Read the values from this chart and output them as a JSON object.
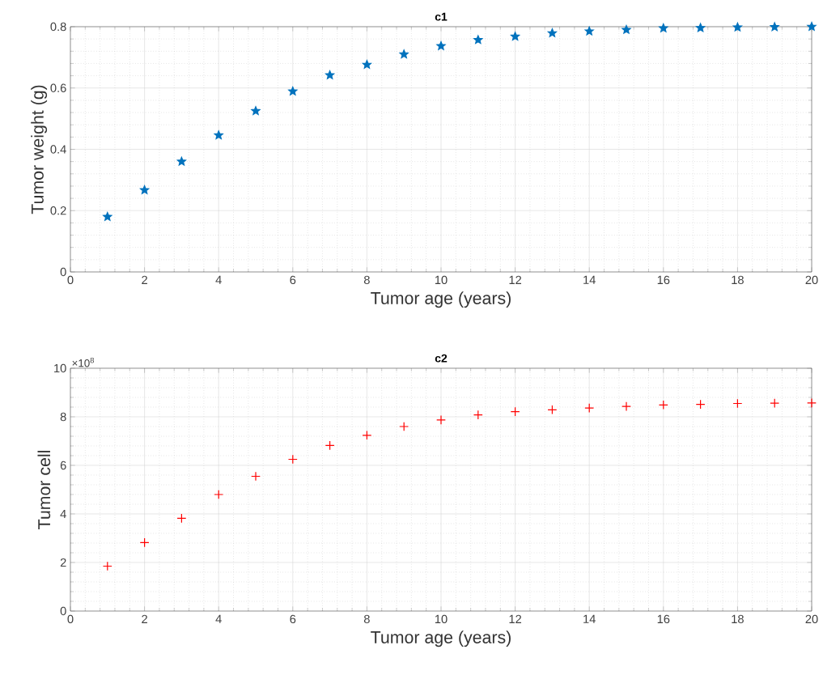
{
  "chart_data": [
    {
      "type": "scatter",
      "title": "c1",
      "xlabel": "Tumor age (years)",
      "ylabel": "Tumor weight (g)",
      "x": [
        1,
        2,
        3,
        4,
        5,
        6,
        7,
        8,
        9,
        10,
        11,
        12,
        13,
        14,
        15,
        16,
        17,
        18,
        19,
        20
      ],
      "values": [
        0.18,
        0.267,
        0.36,
        0.446,
        0.525,
        0.589,
        0.642,
        0.676,
        0.71,
        0.737,
        0.757,
        0.768,
        0.779,
        0.785,
        0.79,
        0.795,
        0.796,
        0.798,
        0.799,
        0.8
      ],
      "color": "#0072bd",
      "marker": "star",
      "grid": true,
      "xlim": [
        0,
        20
      ],
      "ylim": [
        0,
        0.8
      ],
      "xticks": [
        0,
        2,
        4,
        6,
        8,
        10,
        12,
        14,
        16,
        18,
        20
      ],
      "yticks": [
        0,
        0.2,
        0.4,
        0.6,
        0.8
      ]
    },
    {
      "type": "scatter",
      "title": "c2",
      "xlabel": "Tumor age (years)",
      "ylabel": "Tumor cell",
      "x": [
        1,
        2,
        3,
        4,
        5,
        6,
        7,
        8,
        9,
        10,
        11,
        12,
        13,
        14,
        15,
        16,
        17,
        18,
        19,
        20
      ],
      "values": [
        1.85,
        2.82,
        3.82,
        4.8,
        5.55,
        6.25,
        6.82,
        7.24,
        7.6,
        7.87,
        8.08,
        8.21,
        8.29,
        8.36,
        8.43,
        8.49,
        8.51,
        8.55,
        8.56,
        8.57
      ],
      "color": "#ff0000",
      "marker": "cross",
      "grid": true,
      "xlim": [
        0,
        20
      ],
      "ylim": [
        0,
        10
      ],
      "xticks": [
        0,
        2,
        4,
        6,
        8,
        10,
        12,
        14,
        16,
        18,
        20
      ],
      "yticks": [
        0,
        2,
        4,
        6,
        8,
        10
      ],
      "annotations": [
        "×10$^{8}$"
      ]
    }
  ]
}
